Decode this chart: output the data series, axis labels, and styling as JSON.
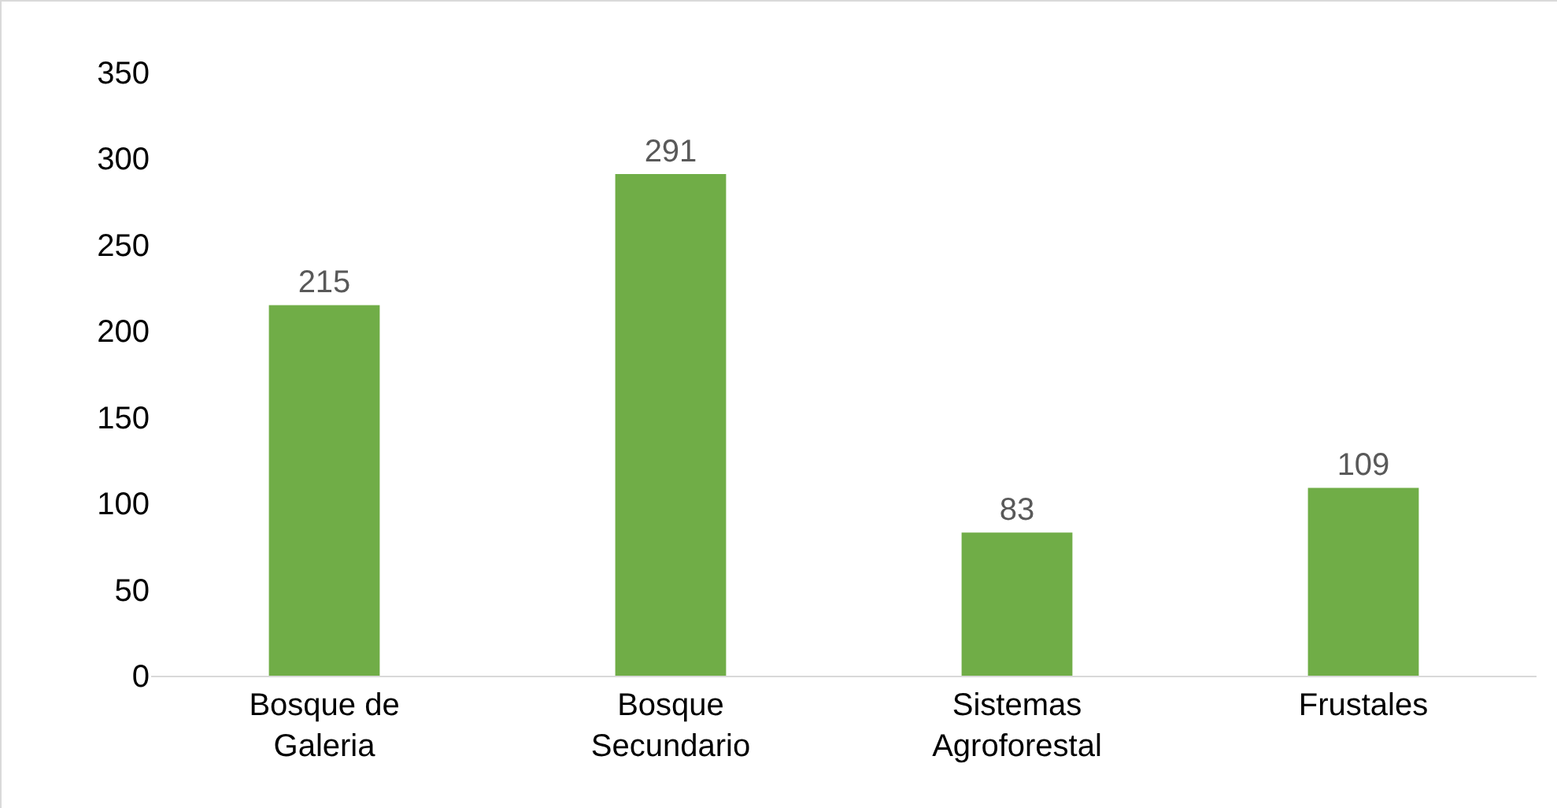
{
  "chart_data": {
    "type": "bar",
    "categories": [
      "Bosque de Galeria",
      "Bosque Secundario",
      "Sistemas Agroforestal",
      "Frustales"
    ],
    "values": [
      215,
      291,
      83,
      109
    ],
    "color": "#70ad47",
    "ylim": [
      0,
      350
    ],
    "yticks": [
      0,
      50,
      100,
      150,
      200,
      250,
      300,
      350
    ],
    "grid": false,
    "data_labels": true
  }
}
